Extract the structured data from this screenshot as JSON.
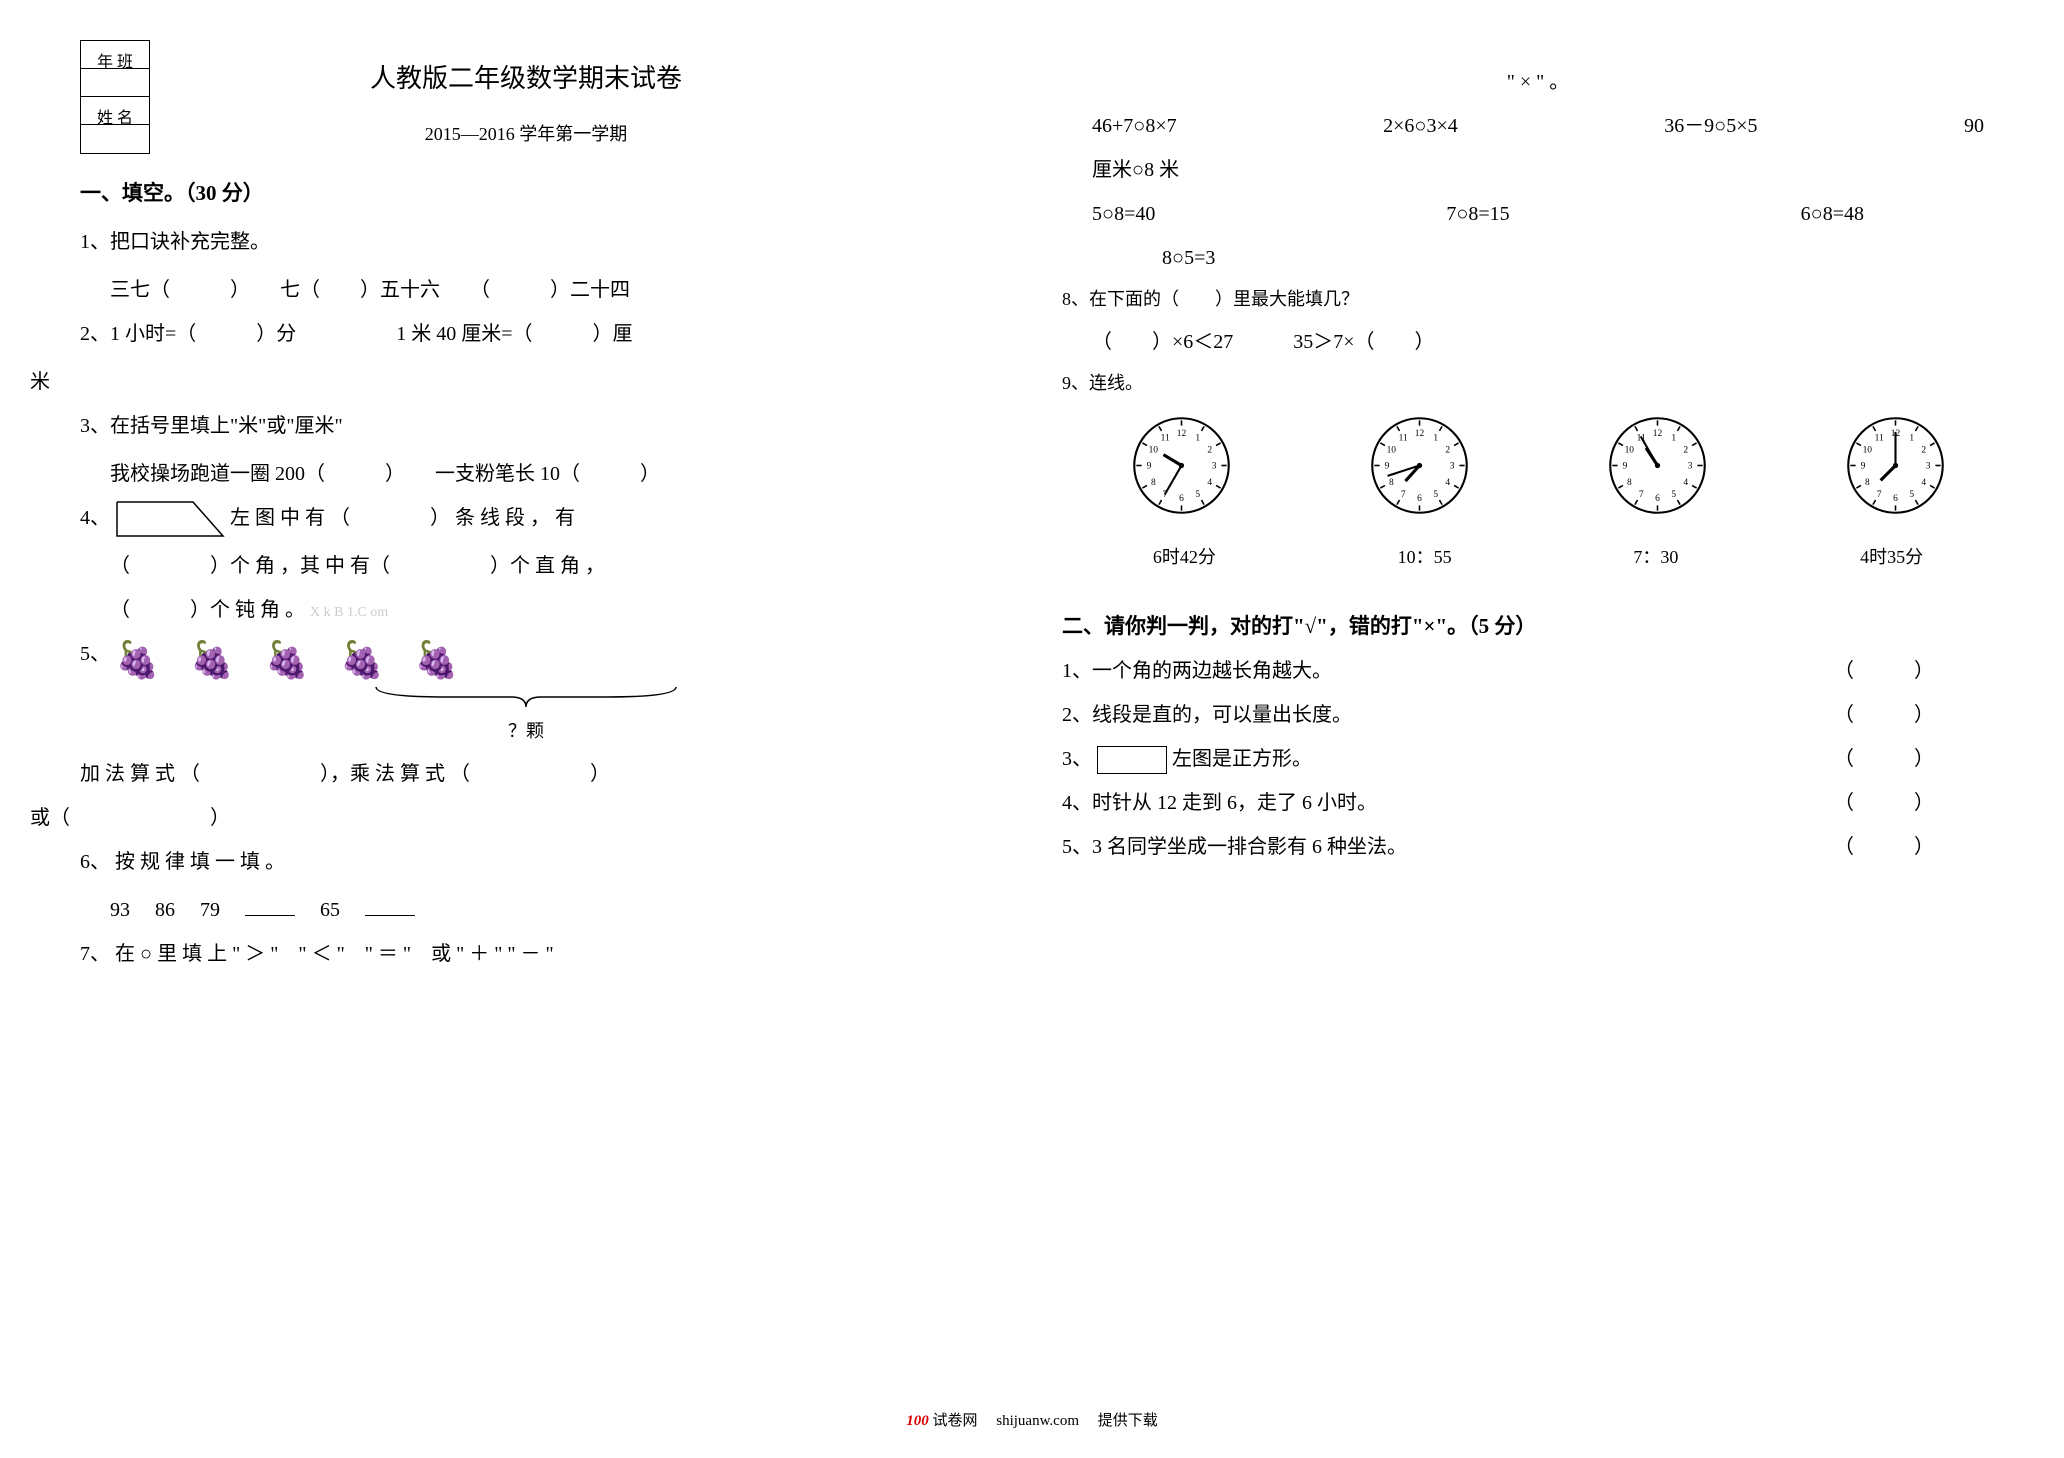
{
  "header_box": {
    "row1": "年 班",
    "row2": "",
    "row3": "姓 名",
    "row4": ""
  },
  "title": "人教版二年级数学期末试卷",
  "subtitle": "2015—2016 学年第一学期",
  "section1": "一、填空。（30 分）",
  "q1": "1、把口诀补充完整。",
  "q1_line": "三七（　　　）　　七（　　）五十六　　（　　　）二十四",
  "q2": "2、1 小时=（　　　）分　　　　　1 米 40 厘米=（　　　）厘",
  "q2_tail": "米",
  "q3": "3、在括号里填上\"米\"或\"厘米\"",
  "q3_line": "我校操场跑道一圈 200（　　　）　　一支粉笔长 10（　　　）",
  "q4_a": "4、",
  "q4_b": "左 图 中 有 （　　　　） 条 线 段 ， 有",
  "q4_c": "（　　　　）个 角 ，其 中 有（　　　　　）个 直 角 ，",
  "q4_d": "（　　　）个 钝 角 。",
  "q4_wm": "X k B 1.C om",
  "q5_label": "5、",
  "q5_bracket": "？颗",
  "q5_line_a": "加 法 算 式 （　　　　　　），乘 法 算 式 （　　　　　　）",
  "q5_line_b": "或（　　　　　　　）",
  "q6": "6、 按 规 律 填 一 填 。",
  "q6_seq_a": "93",
  "q6_seq_b": "86",
  "q6_seq_c": "79",
  "q6_seq_d": "65",
  "q7": "7、 在 ○ 里 填 上 \" ＞ \"　\" ＜ \"　\" ＝ \"　或 \" ＋ \" \" － \"",
  "q7_top": "\" × \" 。",
  "q7_r1_a": "46+7○8×7",
  "q7_r1_b": "2×6○3×4",
  "q7_r1_c": "36－9○5×5",
  "q7_r1_d": "90",
  "q7_r2": "厘米○8 米",
  "q7_r3_a": "5○8=40",
  "q7_r3_b": "7○8=15",
  "q7_r3_c": "6○8=48",
  "q7_r4": "8○5=3",
  "q8": "8、在下面的（　　）里最大能填几？",
  "q8_line": "（　　）×6＜27　　　35＞7×（　　）",
  "q9": "9、连线。",
  "clock_labels": {
    "a": "6时42分",
    "b": "10：55",
    "c": "7：30",
    "d": "4时35分"
  },
  "clocks": [
    {
      "hour_angle": 301,
      "minute_angle": 210
    },
    {
      "hour_angle": 222,
      "minute_angle": 252
    },
    {
      "hour_angle": 327,
      "minute_angle": 330
    },
    {
      "hour_angle": 225,
      "minute_angle": 0
    }
  ],
  "section2": "二、请你判一判，对的打\"√\"，错的打\"×\"。（5 分）",
  "j1": "1、一个角的两边越长角越大。",
  "j2": "2、线段是直的，可以量出长度。",
  "j3_a": "3、",
  "j3_b": "左图是正方形。",
  "j4": "4、时针从 12 走到 6，走了 6 小时。",
  "j5": "5、3 名同学坐成一排合影有 6 种坐法。",
  "paren": "（　　　）",
  "footer_a": "100",
  "footer_b": "试卷网",
  "footer_c": "shijuanw.com",
  "footer_d": "提供下载",
  "grape_glyph": "🍇",
  "colors": {
    "text": "#000000",
    "bg": "#ffffff",
    "watermark": "#cccccc",
    "accent": "#dd0000"
  }
}
